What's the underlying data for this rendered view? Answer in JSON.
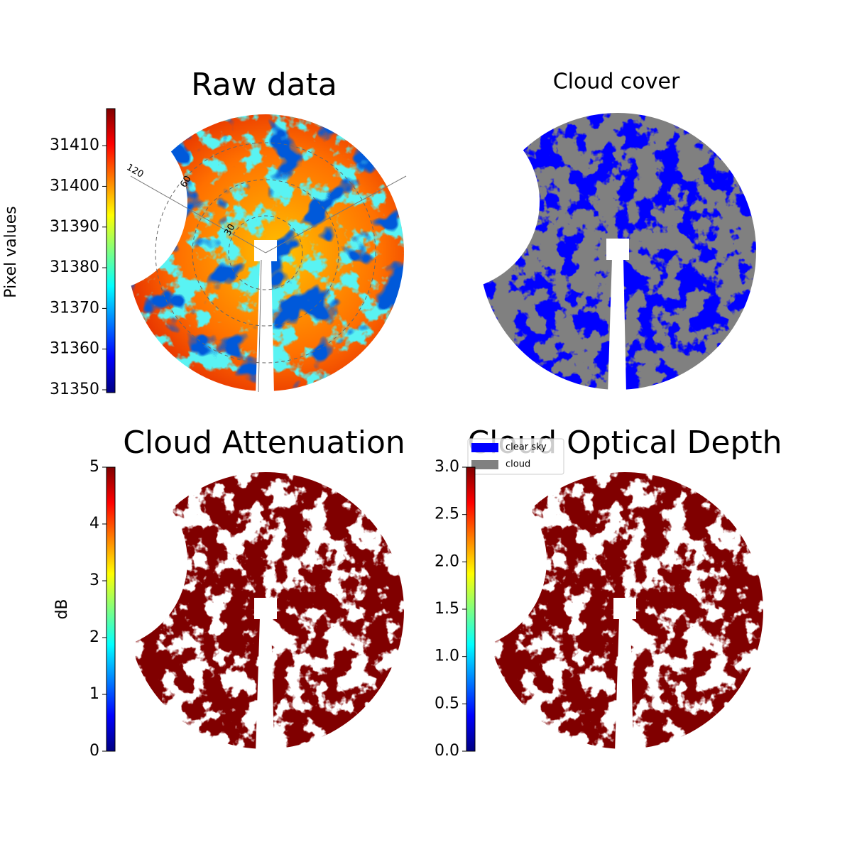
{
  "chart_data": [
    {
      "type": "image",
      "title": "Raw data",
      "colorbar_label": "Pixel values",
      "colormap": "jet",
      "ylim": [
        31349.3,
        31419.1
      ],
      "yticks": [
        31350,
        31360,
        31370,
        31380,
        31390,
        31400,
        31410
      ],
      "annotations": [
        "120",
        "60",
        "30"
      ]
    },
    {
      "type": "image",
      "title": "Cloud cover",
      "series": [
        {
          "name": "clear sky",
          "color": "#0000ff"
        },
        {
          "name": "cloud",
          "color": "#808080"
        }
      ]
    },
    {
      "type": "image",
      "title": "Cloud Attenuation",
      "colorbar_label": "dB",
      "colormap": "jet",
      "ylim": [
        0,
        5
      ],
      "yticks": [
        0,
        1,
        2,
        3,
        4,
        5
      ]
    },
    {
      "type": "image",
      "title": "Cloud Optical Depth",
      "colormap": "jet",
      "ylim": [
        0,
        3
      ],
      "yticks": [
        {
          "value": 0,
          "label": "0.0"
        },
        {
          "value": 0.5,
          "label": "0.5"
        },
        {
          "value": 1,
          "label": "1.0"
        },
        {
          "value": 1.5,
          "label": "1.5"
        },
        {
          "value": 2,
          "label": "2.0"
        },
        {
          "value": 2.5,
          "label": "2.5"
        },
        {
          "value": 3,
          "label": "3.0"
        }
      ]
    }
  ]
}
